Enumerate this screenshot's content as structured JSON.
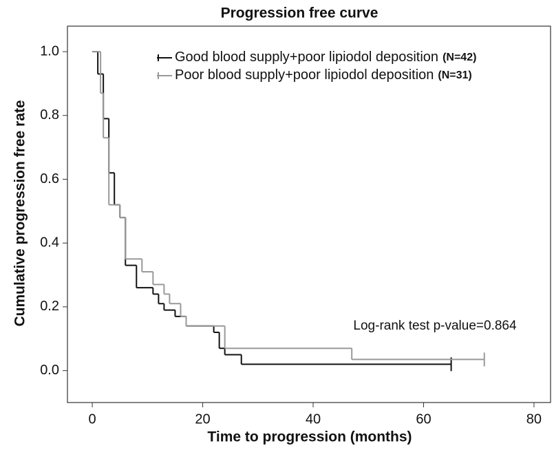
{
  "chart_data": {
    "type": "step",
    "title": "Progression free curve",
    "xlabel": "Time to progression (months)",
    "ylabel": "Cumulative progression free rate",
    "annotation": "Log-rank test p-value=0.864",
    "xlim": [
      -4.5,
      83
    ],
    "ylim": [
      -0.1,
      1.08
    ],
    "xticks": [
      0,
      20,
      40,
      60,
      80
    ],
    "yticks": [
      {
        "value": 0,
        "label": "0.0"
      },
      0.2,
      0.4,
      0.6,
      0.8,
      {
        "value": 1,
        "label": "1.0"
      }
    ],
    "legend": "upper right",
    "series": [
      {
        "name": "Good blood supply+poor lipiodol deposition",
        "n_label": "(N=42)",
        "color": "#111111",
        "x": [
          0,
          1,
          2,
          3,
          4,
          5,
          6,
          8,
          11,
          12,
          13,
          15,
          17,
          22,
          23,
          24,
          27,
          65
        ],
        "values": [
          1.0,
          0.93,
          0.79,
          0.62,
          0.52,
          0.48,
          0.33,
          0.26,
          0.24,
          0.21,
          0.19,
          0.17,
          0.14,
          0.12,
          0.07,
          0.05,
          0.02,
          0.02
        ]
      },
      {
        "name": "Poor blood supply+poor lipiodol deposition",
        "n_label": "(N=31)",
        "color": "#999999",
        "x": [
          0,
          1.5,
          2,
          3,
          5,
          6,
          9,
          11,
          13,
          14,
          16,
          17,
          24,
          47,
          71
        ],
        "values": [
          1.0,
          0.87,
          0.73,
          0.52,
          0.48,
          0.35,
          0.31,
          0.27,
          0.24,
          0.21,
          0.17,
          0.14,
          0.07,
          0.035,
          0.035
        ]
      }
    ]
  }
}
